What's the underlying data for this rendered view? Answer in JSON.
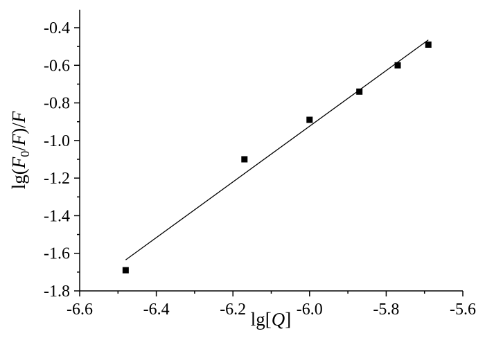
{
  "chart_data": {
    "type": "scatter",
    "title": "",
    "xlabel_parts": {
      "prefix": "lg[",
      "var": "Q",
      "suffix": "]"
    },
    "ylabel_parts": {
      "prefix": "lg(",
      "var1": "F",
      "sub": "0",
      "mid": "/",
      "var2": "F",
      "close": ")/",
      "var3": "F"
    },
    "xlim": [
      -6.6,
      -5.6
    ],
    "ylim": [
      -1.8,
      -0.3
    ],
    "xticks": [
      "-6.6",
      "-6.4",
      "-6.2",
      "-6.0",
      "-5.8",
      "-5.6"
    ],
    "xtick_values": [
      -6.6,
      -6.4,
      -6.2,
      -6.0,
      -5.8,
      -5.6
    ],
    "yticks": [
      "-1.8",
      "-1.6",
      "-1.4",
      "-1.2",
      "-1.0",
      "-0.8",
      "-0.6",
      "-0.4"
    ],
    "ytick_values": [
      -1.8,
      -1.6,
      -1.4,
      -1.2,
      -1.0,
      -0.8,
      -0.6,
      -0.4
    ],
    "grid": false,
    "legend": "none",
    "series": [
      {
        "x": [
          -6.48,
          -6.17,
          -6.0,
          -5.87,
          -5.77,
          -5.69
        ],
        "y": [
          -1.69,
          -1.1,
          -0.89,
          -0.74,
          -0.6,
          -0.49
        ],
        "marker": "square"
      }
    ],
    "fit_line": {
      "x": [
        -6.48,
        -5.69
      ],
      "y": [
        -1.635,
        -0.465
      ]
    }
  }
}
